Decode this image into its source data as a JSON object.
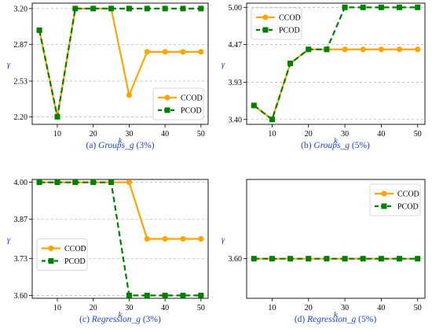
{
  "colors": {
    "ccod": "#ffa500",
    "pcod": "#008000",
    "axis_label": "#1a3fd6",
    "caption": "#1a3fd6",
    "grid": "#b0b0b0",
    "frame": "#000000"
  },
  "chart_data": [
    {
      "type": "line",
      "caption": {
        "prefix": "(a) ",
        "italic": "Groups_g",
        "suffix": " (3%)"
      },
      "xlabel": "k",
      "ylabel": "γ",
      "xlim": [
        3,
        52
      ],
      "ylim": [
        2.13,
        3.25
      ],
      "xticks": [
        10,
        20,
        30,
        40,
        50
      ],
      "yticks": [
        2.2,
        2.53,
        2.87,
        3.2
      ],
      "ytick_labels": [
        "2.20",
        "2.53",
        "2.87",
        "3.20"
      ],
      "grid": "horizontal dashed",
      "legend": {
        "placement": "lower-right",
        "entries": [
          "CCOD",
          "PCOD"
        ]
      },
      "x": [
        5,
        10,
        15,
        20,
        25,
        30,
        35,
        40,
        45,
        50
      ],
      "series": [
        {
          "name": "CCOD",
          "values": [
            3.0,
            2.2,
            3.2,
            3.2,
            3.2,
            2.4,
            2.8,
            2.8,
            2.8,
            2.8
          ]
        },
        {
          "name": "PCOD",
          "values": [
            3.0,
            2.2,
            3.2,
            3.2,
            3.2,
            3.2,
            3.2,
            3.2,
            3.2,
            3.2
          ]
        }
      ]
    },
    {
      "type": "line",
      "caption": {
        "prefix": "(b) ",
        "italic": "Groups_g",
        "suffix": " (5%)"
      },
      "xlabel": "k",
      "ylabel": "γ",
      "xlim": [
        3,
        52
      ],
      "ylim": [
        3.33,
        5.06
      ],
      "xticks": [
        10,
        20,
        30,
        40,
        50
      ],
      "yticks": [
        3.4,
        3.93,
        4.47,
        5.0
      ],
      "ytick_labels": [
        "3.40",
        "3.93",
        "4.47",
        "5.00"
      ],
      "grid": "horizontal dashed",
      "legend": {
        "placement": "upper-left",
        "entries": [
          "CCOD",
          "PCOD"
        ]
      },
      "x": [
        5,
        10,
        15,
        20,
        25,
        30,
        35,
        40,
        45,
        50
      ],
      "series": [
        {
          "name": "CCOD",
          "values": [
            3.6,
            3.4,
            4.2,
            4.4,
            4.4,
            4.4,
            4.4,
            4.4,
            4.4,
            4.4
          ]
        },
        {
          "name": "PCOD",
          "values": [
            3.6,
            3.4,
            4.2,
            4.4,
            4.4,
            5.0,
            5.0,
            5.0,
            5.0,
            5.0
          ]
        }
      ]
    },
    {
      "type": "line",
      "caption": {
        "prefix": "(c) ",
        "italic": "Regression_g",
        "suffix": " (3%)"
      },
      "xlabel": "k",
      "ylabel": "γ",
      "xlim": [
        3,
        52
      ],
      "ylim": [
        3.59,
        4.01
      ],
      "xticks": [
        10,
        20,
        30,
        40,
        50
      ],
      "yticks": [
        3.6,
        3.73,
        3.87,
        4.0
      ],
      "ytick_labels": [
        "3.60",
        "3.73",
        "3.87",
        "4.00"
      ],
      "grid": "horizontal dashed",
      "legend": {
        "placement": "center-left",
        "entries": [
          "CCOD",
          "PCOD"
        ]
      },
      "x": [
        5,
        10,
        15,
        20,
        25,
        30,
        35,
        40,
        45,
        50
      ],
      "series": [
        {
          "name": "CCOD",
          "values": [
            4.0,
            4.0,
            4.0,
            4.0,
            4.0,
            4.0,
            3.8,
            3.8,
            3.8,
            3.8
          ]
        },
        {
          "name": "PCOD",
          "values": [
            4.0,
            4.0,
            4.0,
            4.0,
            4.0,
            3.6,
            3.6,
            3.6,
            3.6,
            3.6
          ]
        }
      ]
    },
    {
      "type": "line",
      "caption": {
        "prefix": "(d) ",
        "italic": "Regression_g",
        "suffix": " (5%)"
      },
      "xlabel": "k",
      "ylabel": "γ",
      "xlim": [
        3,
        52
      ],
      "ylim": [
        3.4,
        4.0
      ],
      "xticks": [
        10,
        20,
        30,
        40,
        50
      ],
      "yticks": [
        3.6
      ],
      "ytick_labels": [
        "3.60"
      ],
      "grid": "horizontal dashed",
      "legend": {
        "placement": "upper-right",
        "entries": [
          "CCOD",
          "PCOD"
        ]
      },
      "x": [
        5,
        10,
        15,
        20,
        25,
        30,
        35,
        40,
        45,
        50
      ],
      "series": [
        {
          "name": "CCOD",
          "values": [
            3.6,
            3.6,
            3.6,
            3.6,
            3.6,
            3.6,
            3.6,
            3.6,
            3.6,
            3.6
          ]
        },
        {
          "name": "PCOD",
          "values": [
            3.6,
            3.6,
            3.6,
            3.6,
            3.6,
            3.6,
            3.6,
            3.6,
            3.6,
            3.6
          ]
        }
      ]
    }
  ]
}
